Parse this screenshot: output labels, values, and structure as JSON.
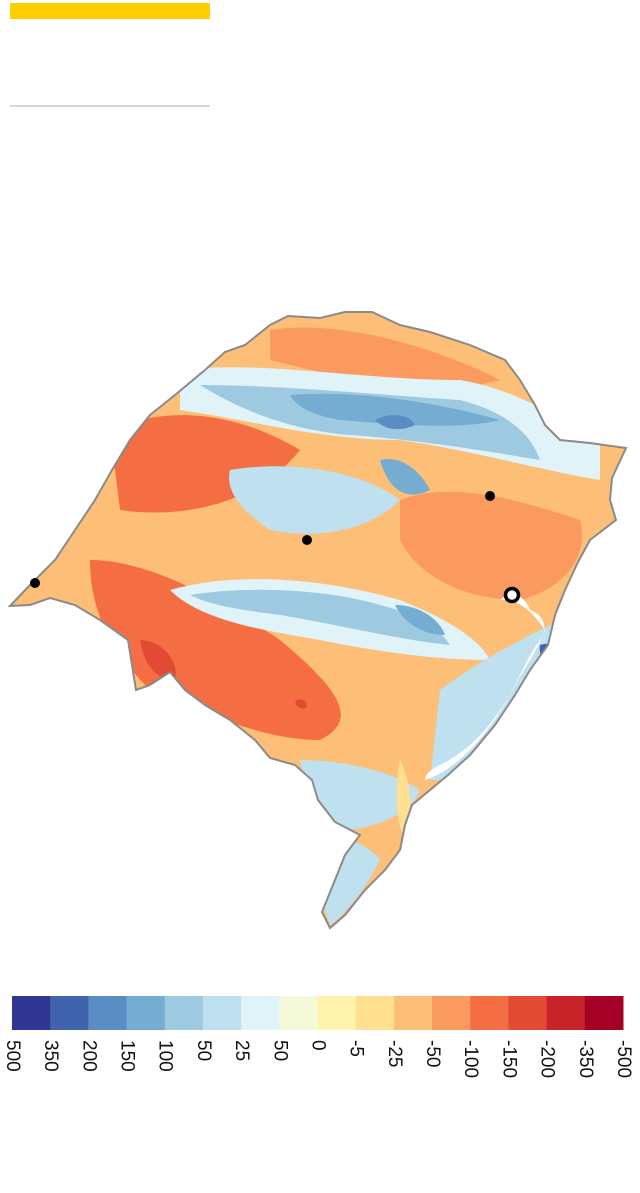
{
  "legend": {
    "colors": [
      "#313695",
      "#4063ad",
      "#5a8dc4",
      "#74add1",
      "#9ecae1",
      "#bfe0ee",
      "#e0f3f8",
      "#f4f9d8",
      "#fff3ad",
      "#fee090",
      "#fdbf77",
      "#fb9a5e",
      "#f46d43",
      "#e34a33",
      "#c72328",
      "#a50026"
    ],
    "labels": [
      "500",
      "350",
      "200",
      "150",
      "100",
      "50",
      "25",
      "50",
      "0",
      "-5",
      "-25",
      "-50",
      "-100",
      "-150",
      "-200",
      "-350",
      "-500"
    ]
  }
}
